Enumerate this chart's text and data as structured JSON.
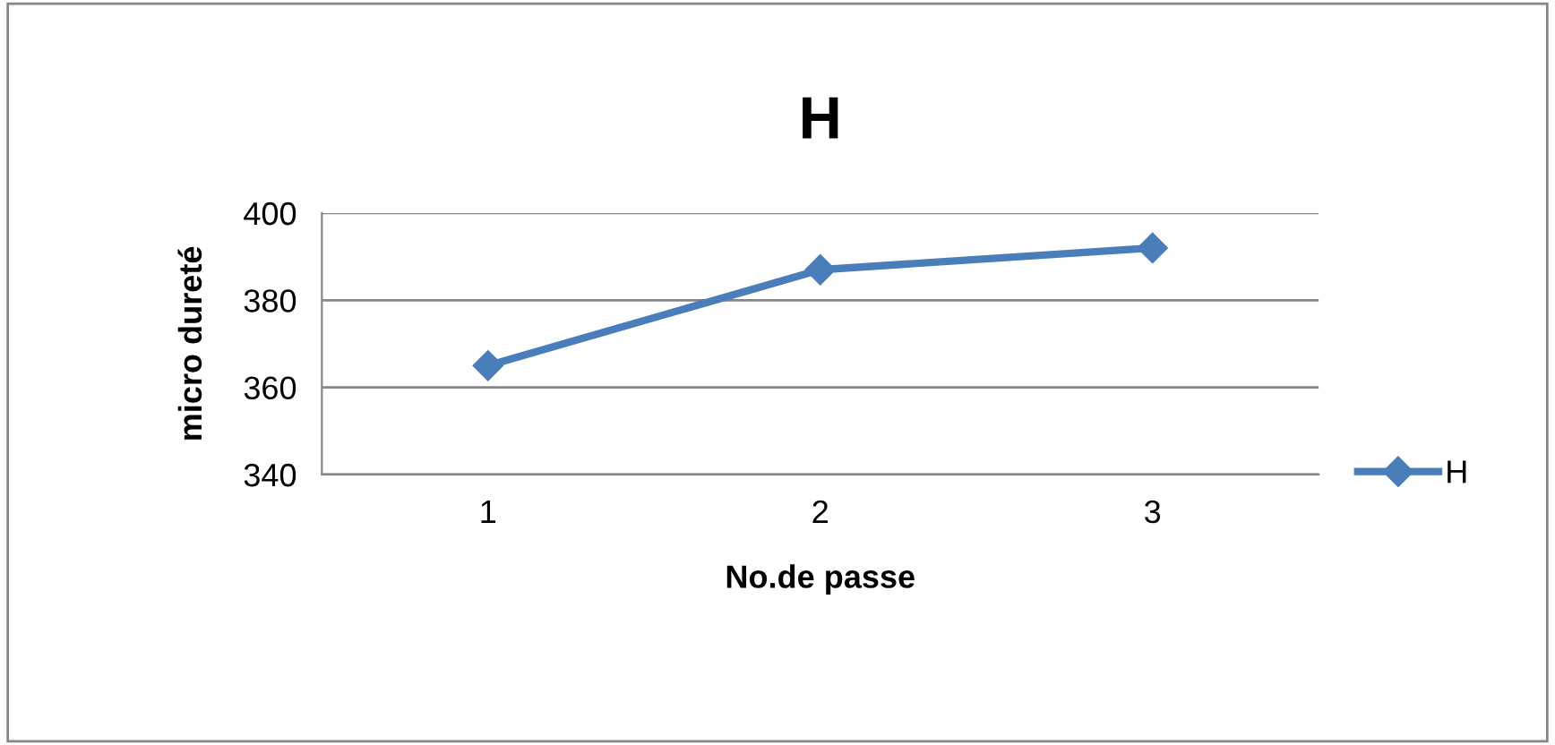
{
  "chart_data": {
    "type": "line",
    "title": "H",
    "xlabel": "No.de passe",
    "ylabel": "micro dureté",
    "categories": [
      "1",
      "2",
      "3"
    ],
    "series": [
      {
        "name": "H",
        "color": "#4a7ebb",
        "values": [
          365,
          387,
          392
        ]
      }
    ],
    "ylim": [
      340,
      400
    ],
    "yticks": [
      340,
      360,
      380,
      400
    ],
    "grid": "y",
    "legend": "right",
    "marker": "diamond",
    "line_style": "solid"
  }
}
